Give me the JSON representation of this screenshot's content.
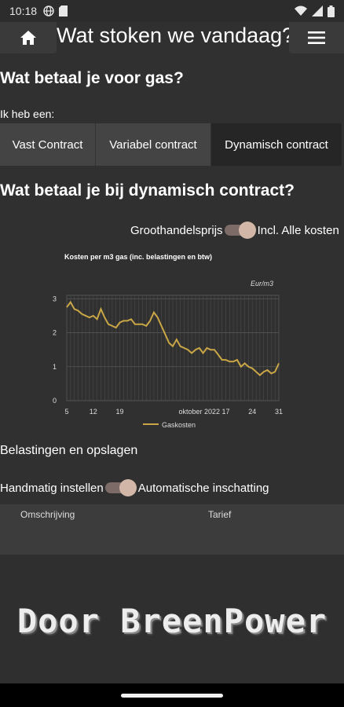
{
  "status_bar": {
    "time": "10:18"
  },
  "header": {
    "title": "Wat stoken we vandaag?"
  },
  "gas_section": {
    "title": "Wat betaal je voor gas?",
    "contract_label": "Ik heb een:",
    "options": [
      "Vast Contract",
      "Variabel contract",
      "Dynamisch contract"
    ],
    "selected": "Dynamisch contract"
  },
  "dynamic_section": {
    "title": "Wat betaal je bij dynamisch contract?",
    "toggle_left": "Groothandelsprijs",
    "toggle_right": "Incl. Alle kosten"
  },
  "chart_data": {
    "type": "line",
    "title": "Kosten per m3 gas (inc. belastingen en btw)",
    "unit_label": "Eur/m3",
    "x_tick_labels": [
      "5",
      "12",
      "19",
      "oktober 2022",
      "17",
      "24",
      "31"
    ],
    "y_ticks": [
      0,
      1,
      2,
      3
    ],
    "ylim": [
      0,
      3.1
    ],
    "grid": true,
    "legend": "bottom",
    "series": [
      {
        "name": "Gaskosten",
        "color": "#c9a646",
        "x": [
          5,
          6,
          7,
          8,
          9,
          10,
          11,
          12,
          13,
          14,
          15,
          16,
          17,
          18,
          19,
          20,
          21,
          22,
          23,
          24,
          25,
          26,
          27,
          28,
          29,
          30,
          1,
          2,
          3,
          4,
          5,
          6,
          7,
          8,
          9,
          10,
          11,
          12,
          13,
          14,
          15,
          16,
          17,
          18,
          19,
          20,
          21,
          22,
          23,
          24,
          25,
          26,
          27,
          28,
          29,
          30,
          31
        ],
        "y": [
          2.75,
          2.9,
          2.7,
          2.65,
          2.55,
          2.5,
          2.45,
          2.5,
          2.4,
          2.7,
          2.45,
          2.25,
          2.2,
          2.15,
          2.3,
          2.35,
          2.35,
          2.4,
          2.25,
          2.25,
          2.25,
          2.2,
          2.35,
          2.6,
          2.45,
          2.2,
          1.95,
          1.7,
          1.6,
          1.8,
          1.6,
          1.55,
          1.5,
          1.4,
          1.5,
          1.55,
          1.4,
          1.55,
          1.5,
          1.5,
          1.35,
          1.2,
          1.2,
          1.15,
          1.15,
          1.2,
          1.0,
          1.1,
          1.0,
          0.95,
          0.85,
          0.75,
          0.85,
          0.9,
          0.8,
          0.85,
          1.1
        ]
      }
    ]
  },
  "taxes_section": {
    "title": "Belastingen en opslagen",
    "toggle_left": "Handmatig instellen",
    "toggle_right": "Automatische inschatting",
    "table_headers": [
      "Omschrijving",
      "Tarief"
    ]
  },
  "footer": {
    "text": "Door BreenPower"
  }
}
